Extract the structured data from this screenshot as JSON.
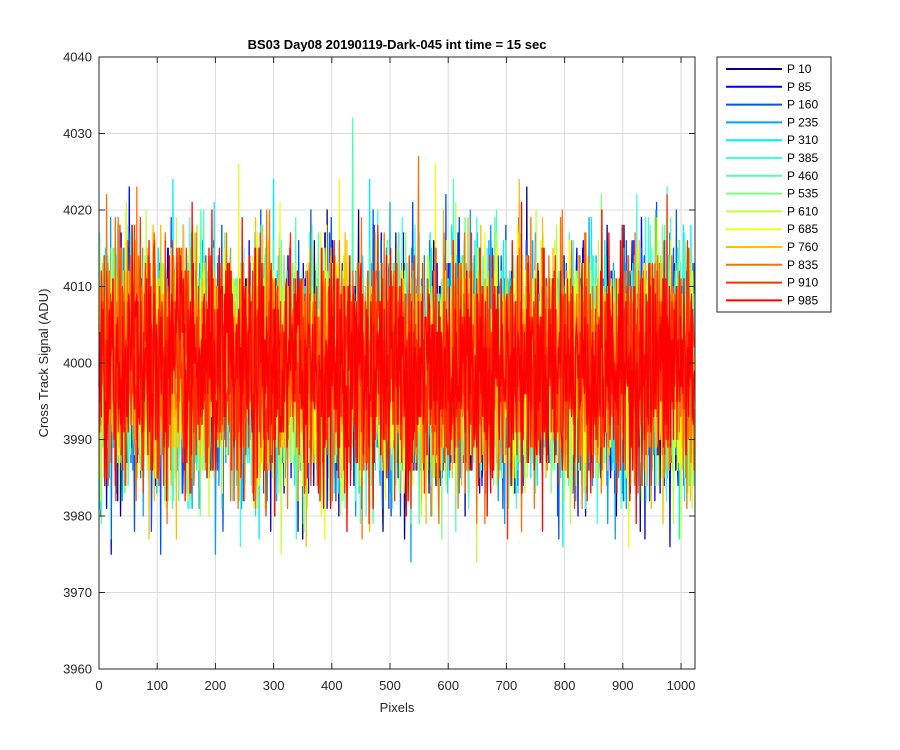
{
  "chart_data": {
    "type": "line",
    "title": "BS03 Day08 20190119-Dark-045 int time = 15 sec",
    "xlabel": "Pixels",
    "ylabel": "Cross Track Signal (ADU)",
    "xlim": [
      0,
      1024
    ],
    "ylim": [
      3960,
      4040
    ],
    "xticks": [
      0,
      100,
      200,
      300,
      400,
      500,
      600,
      700,
      800,
      900,
      1000
    ],
    "yticks": [
      3960,
      3970,
      3980,
      3990,
      4000,
      4010,
      4020,
      4030,
      4040
    ],
    "grid": true,
    "legend_position": "outside-top-right",
    "series": [
      {
        "name": "P 10",
        "color": "#00008f",
        "mean": 3999.5,
        "spread": 7.5,
        "min": 3977,
        "max": 4023
      },
      {
        "name": "P 85",
        "color": "#0000ef",
        "mean": 3999.5,
        "spread": 7.5,
        "min": 3975,
        "max": 4031
      },
      {
        "name": "P 160",
        "color": "#0050ff",
        "mean": 3999.5,
        "spread": 7.5,
        "min": 3975,
        "max": 4025
      },
      {
        "name": "P 235",
        "color": "#00a0ff",
        "mean": 3999.5,
        "spread": 7.5,
        "min": 3973,
        "max": 4029
      },
      {
        "name": "P 310",
        "color": "#00efff",
        "mean": 3999.5,
        "spread": 7.5,
        "min": 3971,
        "max": 4024
      },
      {
        "name": "P 385",
        "color": "#40ffdf",
        "mean": 3999.5,
        "spread": 7.5,
        "min": 3969,
        "max": 4039
      },
      {
        "name": "P 460",
        "color": "#50ffaf",
        "mean": 3999.5,
        "spread": 7.5,
        "min": 3974,
        "max": 4038
      },
      {
        "name": "P 535",
        "color": "#80ff80",
        "mean": 3999.5,
        "spread": 7.5,
        "min": 3967,
        "max": 4027
      },
      {
        "name": "P 610",
        "color": "#bfff40",
        "mean": 3999.5,
        "spread": 7.5,
        "min": 3971,
        "max": 4029
      },
      {
        "name": "P 685",
        "color": "#efff10",
        "mean": 3999.5,
        "spread": 7.5,
        "min": 3973,
        "max": 4027
      },
      {
        "name": "P 760",
        "color": "#ffbf00",
        "mean": 3999.5,
        "spread": 7.5,
        "min": 3972,
        "max": 4032
      },
      {
        "name": "P 835",
        "color": "#ff7000",
        "mean": 3999.5,
        "spread": 7.5,
        "min": 3971,
        "max": 4027
      },
      {
        "name": "P 910",
        "color": "#ff3000",
        "mean": 3999.5,
        "spread": 7.5,
        "min": 3967,
        "max": 4024
      },
      {
        "name": "P 985",
        "color": "#ff0000",
        "mean": 3999.5,
        "spread": 7.5,
        "min": 3978,
        "max": 4022
      }
    ],
    "samples_per_series": 1024
  }
}
